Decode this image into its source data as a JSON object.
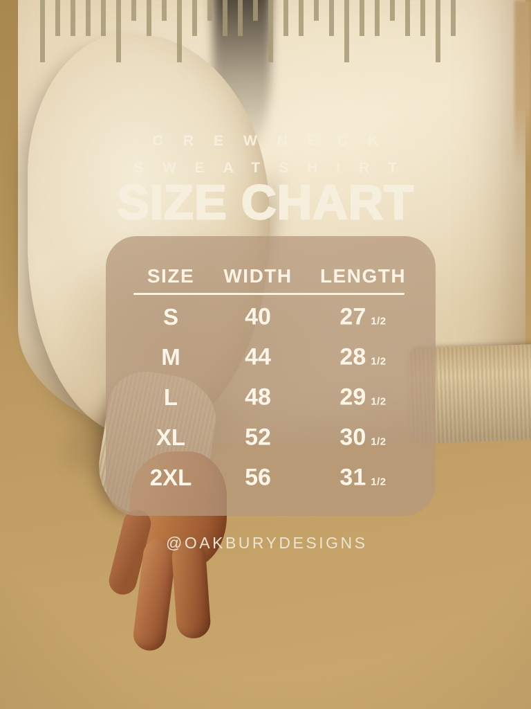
{
  "title": {
    "product_line1": "CREWNECK",
    "product_line2": "SWEATSHIRT",
    "heading": "SIZE CHART"
  },
  "table": {
    "headers": [
      "SIZE",
      "WIDTH",
      "LENGTH"
    ],
    "rows": [
      {
        "size": "S",
        "width": "40",
        "length_whole": "27",
        "length_frac": "1/2"
      },
      {
        "size": "M",
        "width": "44",
        "length_whole": "28",
        "length_frac": "1/2"
      },
      {
        "size": "L",
        "width": "48",
        "length_whole": "29",
        "length_frac": "1/2"
      },
      {
        "size": "XL",
        "width": "52",
        "length_whole": "30",
        "length_frac": "1/2"
      },
      {
        "size": "2XL",
        "width": "56",
        "length_whole": "31",
        "length_frac": "1/2"
      }
    ]
  },
  "chart_data": {
    "type": "table",
    "title": "SIZE CHART",
    "subtitle": "CREWNECK SWEATSHIRT",
    "columns": [
      "SIZE",
      "WIDTH",
      "LENGTH"
    ],
    "rows": [
      [
        "S",
        "40",
        "27 1/2"
      ],
      [
        "M",
        "44",
        "28 1/2"
      ],
      [
        "L",
        "48",
        "29 1/2"
      ],
      [
        "XL",
        "52",
        "30 1/2"
      ],
      [
        "2XL",
        "56",
        "31 1/2"
      ]
    ]
  },
  "footer": {
    "handle": "@OAKBURYDESIGNS"
  },
  "colors": {
    "text_cream": "#f7efdd",
    "panel_overlay": "rgba(181,152,125,0.74)",
    "ruler_bar": "rgba(166,153,118,0.85)",
    "wall": "#bb9a63",
    "sweatshirt": "#ecdfc3",
    "skirt": "#0c0e0d",
    "skin": "#b07347"
  },
  "decor": {
    "ruler_bar_heights": [
      90,
      52,
      52,
      52,
      52,
      90,
      30,
      52,
      30,
      90,
      52,
      30,
      52,
      52,
      30,
      90,
      52,
      52,
      30,
      52,
      90,
      52,
      52,
      30,
      52,
      52,
      90,
      52
    ]
  }
}
